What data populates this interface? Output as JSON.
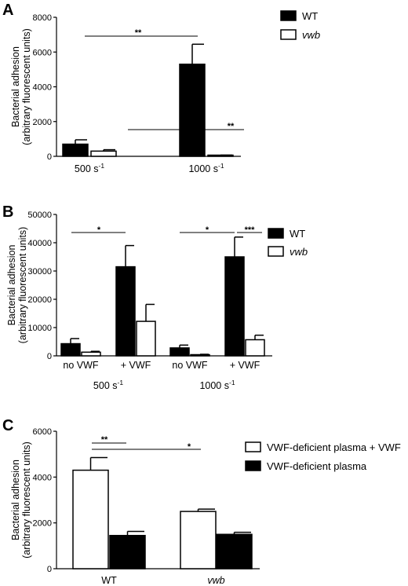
{
  "chart_data": [
    {
      "panel": "A",
      "type": "bar",
      "ylabel_line1": "Bacterial adhesion",
      "ylabel_line2": "(arbitrary fluorescent units)",
      "ylim": [
        0,
        8000
      ],
      "yticks": [
        "0",
        "2000",
        "4000",
        "6000",
        "8000"
      ],
      "categories": [
        {
          "base": "500 s",
          "sup": "-1"
        },
        {
          "base": "1000 s",
          "sup": "-1"
        }
      ],
      "series": [
        {
          "name": "WT",
          "fill": "#000000",
          "values": [
            700,
            5300
          ],
          "errors": [
            250,
            1150
          ]
        },
        {
          "name": "vwb",
          "italic": true,
          "fill": "#ffffff",
          "values": [
            300,
            50
          ],
          "errors": [
            80,
            20
          ]
        }
      ],
      "significance": [
        {
          "label": "**"
        },
        {
          "label": "**"
        }
      ]
    },
    {
      "panel": "B",
      "type": "bar",
      "ylabel_line1": "Bacterial adhesion",
      "ylabel_line2": "(arbitrary fluorescent units)",
      "ylim": [
        0,
        50000
      ],
      "yticks": [
        "0",
        "10000",
        "20000",
        "30000",
        "40000",
        "50000"
      ],
      "categories": [
        "no VWF",
        "+ VWF",
        "no VWF",
        "+ VWF"
      ],
      "groups": [
        {
          "base": "500 s",
          "sup": "-1"
        },
        {
          "base": "1000 s",
          "sup": "-1"
        }
      ],
      "series": [
        {
          "name": "WT",
          "fill": "#000000",
          "values": [
            4300,
            31500,
            2800,
            35000
          ],
          "errors": [
            1800,
            7500,
            1000,
            7000
          ]
        },
        {
          "name": "vwb",
          "italic": true,
          "fill": "#ffffff",
          "values": [
            1300,
            12200,
            400,
            5700
          ],
          "errors": [
            300,
            6000,
            150,
            1600
          ]
        }
      ],
      "significance": [
        {
          "label": "*"
        },
        {
          "label": "*"
        },
        {
          "label": "***"
        }
      ]
    },
    {
      "panel": "C",
      "type": "bar",
      "ylabel_line1": "Bacterial adhesion",
      "ylabel_line2": "(arbitrary fluorescent units)",
      "ylim": [
        0,
        6000
      ],
      "yticks": [
        "0",
        "2000",
        "4000",
        "6000"
      ],
      "categories": [
        {
          "text": "WT",
          "italic": false
        },
        {
          "text": "vwb",
          "italic": true
        }
      ],
      "series": [
        {
          "name": "VWF-deficient plasma + VWF",
          "fill": "#ffffff",
          "values": [
            4300,
            2500
          ],
          "errors": [
            550,
            100
          ]
        },
        {
          "name": "VWF-deficient plasma",
          "fill": "#000000",
          "values": [
            1450,
            1500
          ],
          "errors": [
            180,
            90
          ]
        }
      ],
      "significance": [
        {
          "label": "**"
        },
        {
          "label": "*"
        }
      ]
    }
  ]
}
